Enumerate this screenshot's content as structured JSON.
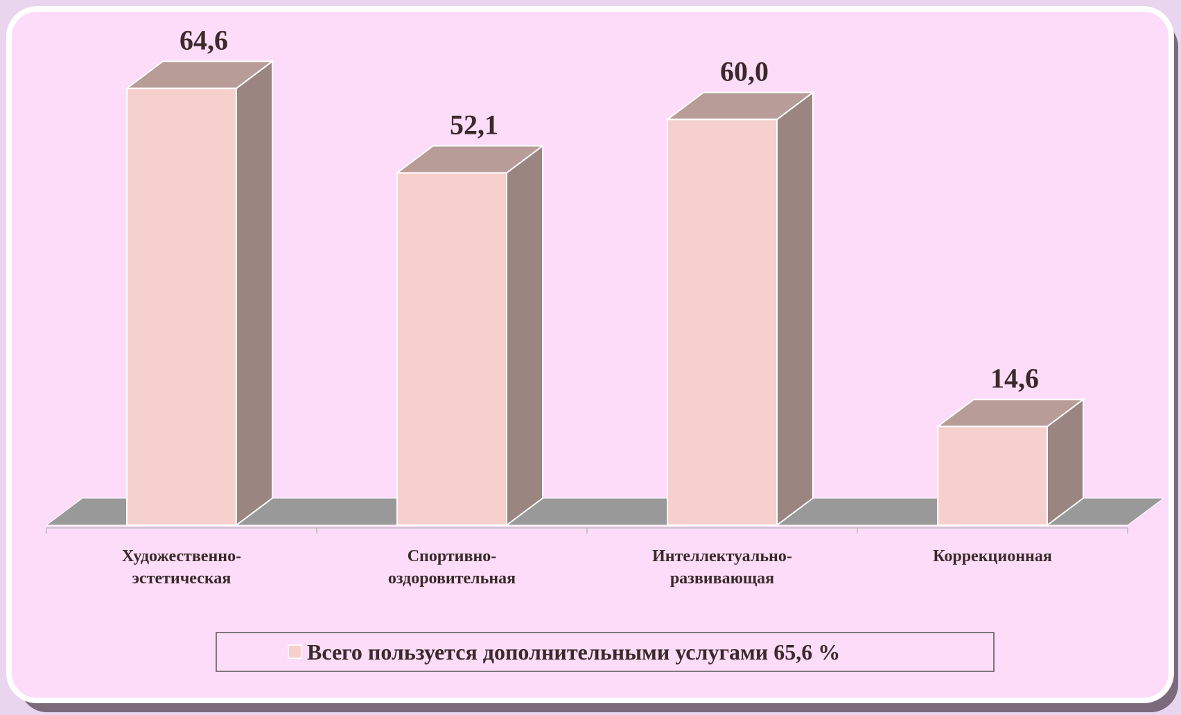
{
  "chart_data": {
    "type": "bar3d",
    "categories": [
      [
        "Художественно-",
        "эстетическая"
      ],
      [
        "Спортивно-",
        "оздоровительная"
      ],
      [
        "Интеллектуально-",
        "развивающая"
      ],
      [
        "Коррекционная"
      ]
    ],
    "series": [
      {
        "name": "Всего пользуется дополнительными услугами 65,6 %",
        "color": "#f5d0cc",
        "values": [
          64.6,
          52.1,
          60.0,
          14.6
        ],
        "value_labels": [
          "64,6",
          "52,1",
          "60,0",
          "14,6"
        ]
      }
    ],
    "legend": "bottom"
  }
}
